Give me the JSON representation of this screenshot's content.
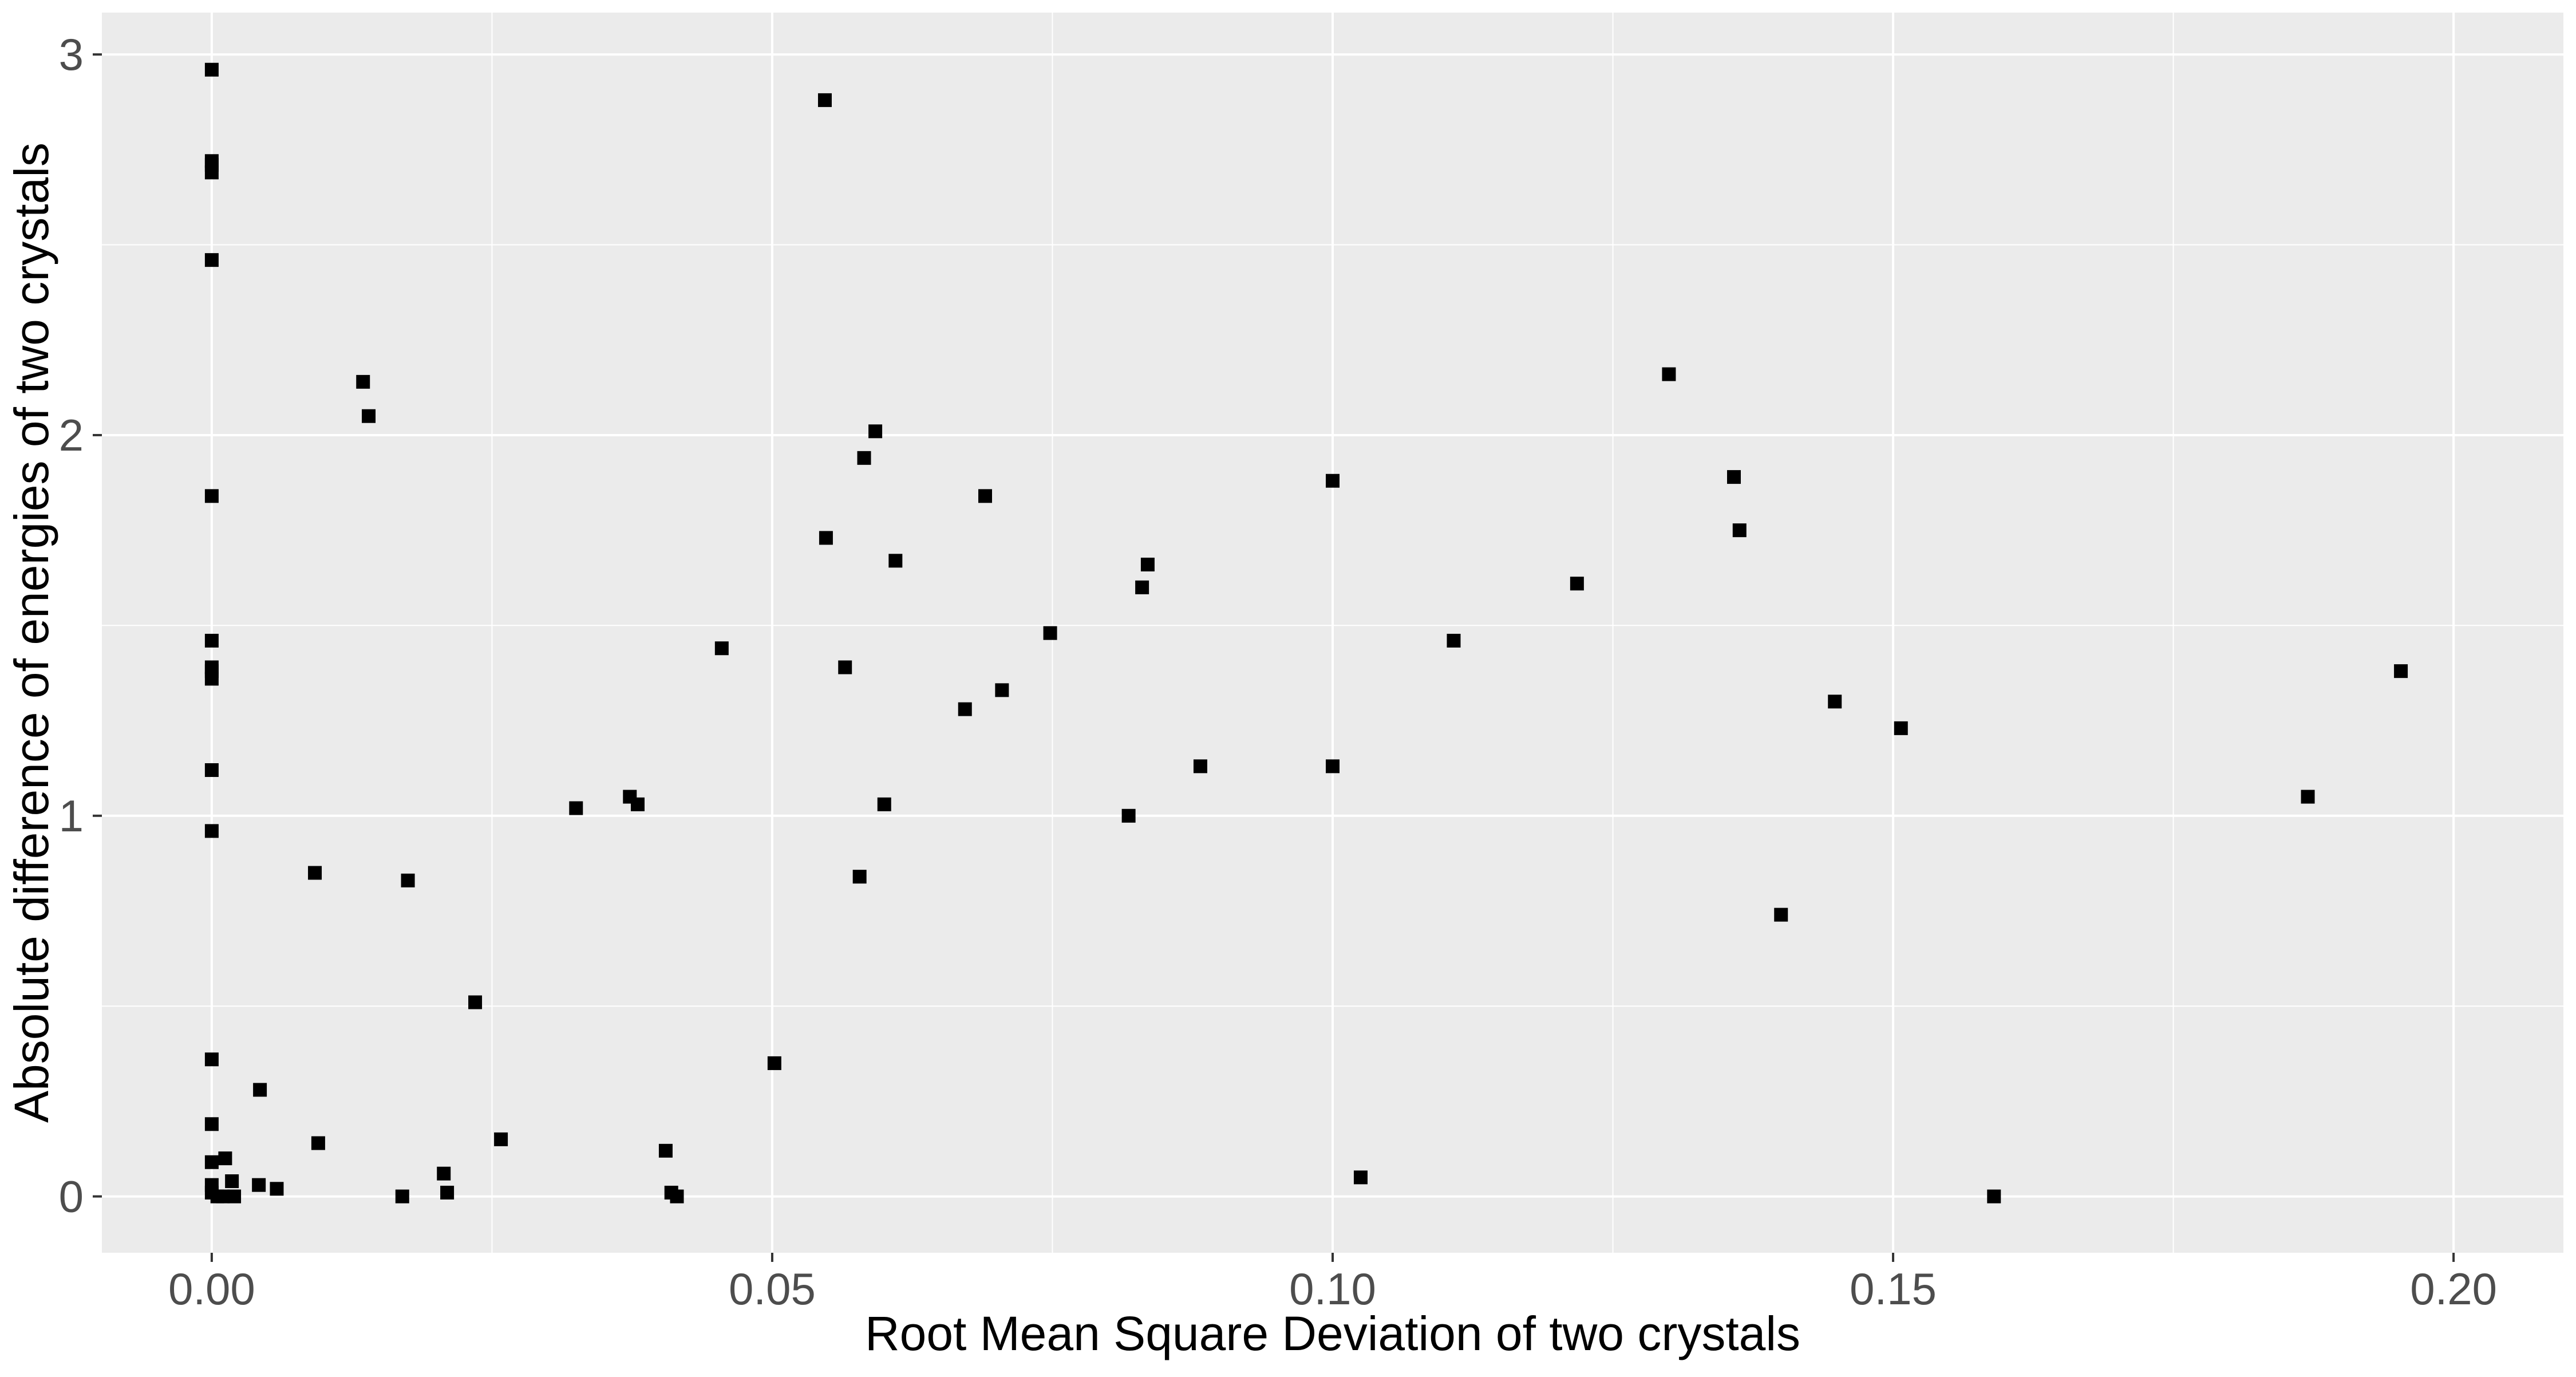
{
  "chart_data": {
    "type": "scatter",
    "title": "",
    "xlabel": "Root Mean Square Deviation of two crystals",
    "ylabel": "Absolute difference of energies of two crystals",
    "xlim": [
      -0.0098,
      0.2098
    ],
    "ylim": [
      -0.148,
      3.11
    ],
    "x_ticks": [
      0.0,
      0.05,
      0.1,
      0.15,
      0.2
    ],
    "x_tick_labels": [
      "0.00",
      "0.05",
      "0.10",
      "0.15",
      "0.20"
    ],
    "y_ticks": [
      0,
      1,
      2,
      3
    ],
    "y_tick_labels": [
      "0",
      "1",
      "2",
      "3"
    ],
    "grid": true,
    "legend": "none",
    "colors": {
      "panel": "#EBEBEB",
      "grid": "#FFFFFF",
      "point": "#000000",
      "tick_text": "#4D4D4D",
      "axis_title": "#000000"
    },
    "marker": "square",
    "points": [
      {
        "x": 0.0,
        "y": 2.96
      },
      {
        "x": 0.0,
        "y": 2.72
      },
      {
        "x": 0.0,
        "y": 2.71
      },
      {
        "x": 0.0,
        "y": 2.69
      },
      {
        "x": 0.0,
        "y": 2.46
      },
      {
        "x": 0.0,
        "y": 1.84
      },
      {
        "x": 0.0,
        "y": 1.46
      },
      {
        "x": 0.0,
        "y": 1.39
      },
      {
        "x": 0.0,
        "y": 1.38
      },
      {
        "x": 0.0,
        "y": 1.36
      },
      {
        "x": 0.0,
        "y": 1.12
      },
      {
        "x": 0.0,
        "y": 0.96
      },
      {
        "x": 0.0,
        "y": 0.36
      },
      {
        "x": 0.0,
        "y": 0.19
      },
      {
        "x": 0.0,
        "y": 0.09
      },
      {
        "x": 0.0,
        "y": 0.03
      },
      {
        "x": 0.0,
        "y": 0.01
      },
      {
        "x": 0.0005,
        "y": 0.0
      },
      {
        "x": 0.001,
        "y": 0.0
      },
      {
        "x": 0.0012,
        "y": 0.1
      },
      {
        "x": 0.0018,
        "y": 0.04
      },
      {
        "x": 0.002,
        "y": 0.0
      },
      {
        "x": 0.0042,
        "y": 0.03
      },
      {
        "x": 0.0043,
        "y": 0.28
      },
      {
        "x": 0.0058,
        "y": 0.02
      },
      {
        "x": 0.0092,
        "y": 0.85
      },
      {
        "x": 0.0095,
        "y": 0.14
      },
      {
        "x": 0.0135,
        "y": 2.14
      },
      {
        "x": 0.014,
        "y": 2.05
      },
      {
        "x": 0.017,
        "y": 0.0
      },
      {
        "x": 0.0175,
        "y": 0.83
      },
      {
        "x": 0.0207,
        "y": 0.06
      },
      {
        "x": 0.021,
        "y": 0.01
      },
      {
        "x": 0.0235,
        "y": 0.51
      },
      {
        "x": 0.0258,
        "y": 0.15
      },
      {
        "x": 0.0325,
        "y": 1.02
      },
      {
        "x": 0.0373,
        "y": 1.05
      },
      {
        "x": 0.038,
        "y": 1.03
      },
      {
        "x": 0.0405,
        "y": 0.12
      },
      {
        "x": 0.041,
        "y": 0.01
      },
      {
        "x": 0.0415,
        "y": 0.0
      },
      {
        "x": 0.0455,
        "y": 1.44
      },
      {
        "x": 0.0502,
        "y": 0.35
      },
      {
        "x": 0.0547,
        "y": 2.88
      },
      {
        "x": 0.0548,
        "y": 1.73
      },
      {
        "x": 0.0565,
        "y": 1.39
      },
      {
        "x": 0.0578,
        "y": 0.84
      },
      {
        "x": 0.0582,
        "y": 1.94
      },
      {
        "x": 0.0592,
        "y": 2.01
      },
      {
        "x": 0.06,
        "y": 1.03
      },
      {
        "x": 0.061,
        "y": 1.67
      },
      {
        "x": 0.0672,
        "y": 1.28
      },
      {
        "x": 0.069,
        "y": 1.84
      },
      {
        "x": 0.0705,
        "y": 1.33
      },
      {
        "x": 0.0748,
        "y": 1.48
      },
      {
        "x": 0.0818,
        "y": 1.0
      },
      {
        "x": 0.083,
        "y": 1.6
      },
      {
        "x": 0.0835,
        "y": 1.66
      },
      {
        "x": 0.0882,
        "y": 1.13
      },
      {
        "x": 0.1,
        "y": 1.88
      },
      {
        "x": 0.1,
        "y": 1.13
      },
      {
        "x": 0.1025,
        "y": 0.05
      },
      {
        "x": 0.1108,
        "y": 1.46
      },
      {
        "x": 0.1218,
        "y": 1.61
      },
      {
        "x": 0.13,
        "y": 2.16
      },
      {
        "x": 0.1358,
        "y": 1.89
      },
      {
        "x": 0.1363,
        "y": 1.75
      },
      {
        "x": 0.14,
        "y": 0.74
      },
      {
        "x": 0.1448,
        "y": 1.3
      },
      {
        "x": 0.1507,
        "y": 1.23
      },
      {
        "x": 0.159,
        "y": 0.0
      },
      {
        "x": 0.187,
        "y": 1.05
      },
      {
        "x": 0.1953,
        "y": 1.38
      }
    ]
  }
}
